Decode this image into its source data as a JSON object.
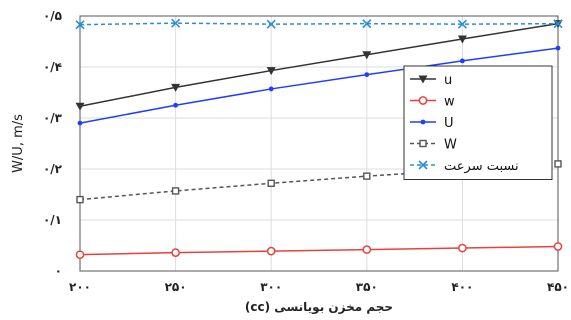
{
  "chart_data": {
    "type": "line",
    "xlabel": "حجم مخزن بویانسی (cc)",
    "ylabel": "W/U, m/s",
    "x": [
      200,
      250,
      300,
      350,
      400,
      450
    ],
    "x_tick_labels": [
      "۲۰۰",
      "۲۵۰",
      "۳۰۰",
      "۳۵۰",
      "۴۰۰",
      "۴۵۰"
    ],
    "xlim": [
      200,
      450
    ],
    "ylim": [
      0,
      0.5
    ],
    "y_ticks": [
      0,
      0.1,
      0.2,
      0.3,
      0.4,
      0.5
    ],
    "y_tick_labels": [
      "۰",
      "۰/۱",
      "۰/۲",
      "۰/۳",
      "۰/۴",
      "۰/۵"
    ],
    "grid": true,
    "legend_position": "center-right",
    "series": [
      {
        "name": "u",
        "values": [
          0.323,
          0.36,
          0.393,
          0.424,
          0.455,
          0.485
        ],
        "color": "#333333",
        "marker": "triangle-down",
        "dash": "solid"
      },
      {
        "name": "w",
        "values": [
          0.032,
          0.036,
          0.039,
          0.042,
          0.045,
          0.048
        ],
        "color": "#e8413c",
        "marker": "circle",
        "dash": "solid"
      },
      {
        "name": "U",
        "values": [
          0.29,
          0.325,
          0.357,
          0.385,
          0.412,
          0.437
        ],
        "color": "#1f3fff",
        "marker": "dot",
        "dash": "solid"
      },
      {
        "name": "W",
        "values": [
          0.14,
          0.157,
          0.172,
          0.186,
          0.198,
          0.21
        ],
        "color": "#555555",
        "marker": "square",
        "dash": "dashed"
      },
      {
        "name": "نسبت سرعت",
        "values": [
          0.483,
          0.486,
          0.484,
          0.485,
          0.484,
          0.485
        ],
        "color": "#2a8fd6",
        "marker": "x",
        "dash": "dashed"
      }
    ]
  }
}
